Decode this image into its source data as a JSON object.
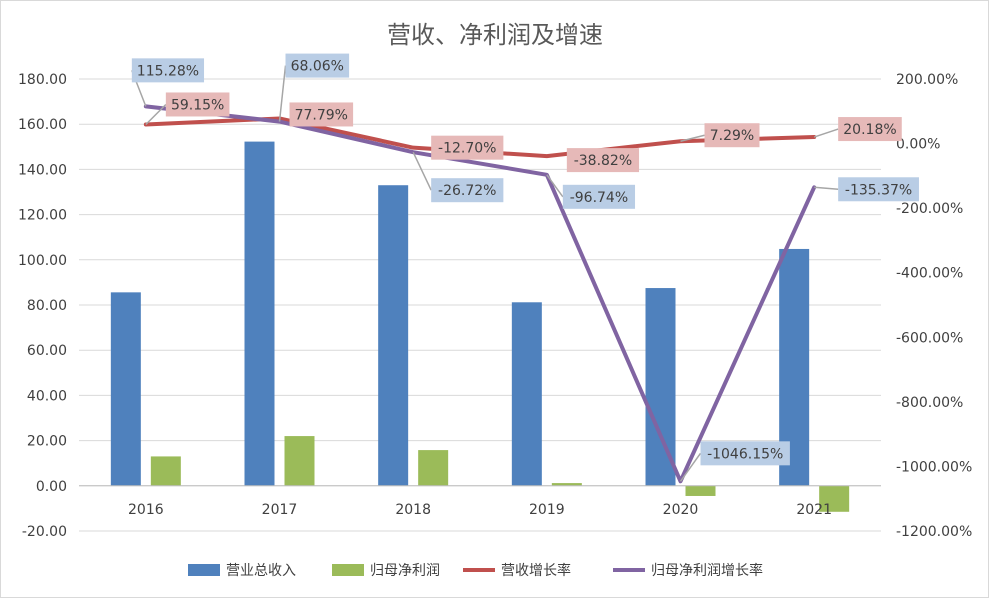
{
  "chart_data": {
    "type": "bar",
    "title": "营收、净利润及增速",
    "categories": [
      "2016",
      "2017",
      "2018",
      "2019",
      "2020",
      "2021"
    ],
    "series": [
      {
        "name": "营业总收入",
        "kind": "bar",
        "axis": "left",
        "color": "#4f81bd",
        "values": [
          85.6,
          152.3,
          133.0,
          81.2,
          87.5,
          104.8
        ]
      },
      {
        "name": "归母净利润",
        "kind": "bar",
        "axis": "left",
        "color": "#9bbb59",
        "values": [
          13.0,
          22.0,
          15.8,
          1.2,
          -4.5,
          -11.5
        ]
      },
      {
        "name": "营收增长率",
        "kind": "line",
        "axis": "right",
        "color": "#c0504d",
        "values": [
          59.15,
          77.79,
          -12.7,
          -38.82,
          7.29,
          20.18
        ],
        "labels": [
          "59.15%",
          "77.79%",
          "-12.70%",
          "-38.82%",
          "7.29%",
          "20.18%"
        ],
        "label_bg": "#e6b9b8"
      },
      {
        "name": "归母净利润增长率",
        "kind": "line",
        "axis": "right",
        "color": "#8064a2",
        "values": [
          115.28,
          68.06,
          -26.72,
          -96.74,
          -1046.15,
          -135.37
        ],
        "labels": [
          "115.28%",
          "68.06%",
          "-26.72%",
          "-96.74%",
          "-1046.15%",
          "-135.37%"
        ],
        "label_bg": "#b9cde5"
      }
    ],
    "y_left": {
      "min": -20,
      "max": 180,
      "step": 20,
      "tick_labels": [
        "-20.00",
        "0.00",
        "20.00",
        "40.00",
        "60.00",
        "80.00",
        "100.00",
        "120.00",
        "140.00",
        "160.00",
        "180.00"
      ]
    },
    "y_right": {
      "min": -1200,
      "max": 200,
      "step": 200,
      "tick_labels": [
        "-1200.00%",
        "-1000.00%",
        "-800.00%",
        "-600.00%",
        "-400.00%",
        "-200.00%",
        "0.00%",
        "200.00%"
      ]
    },
    "grid": true,
    "legend_position": "bottom"
  }
}
